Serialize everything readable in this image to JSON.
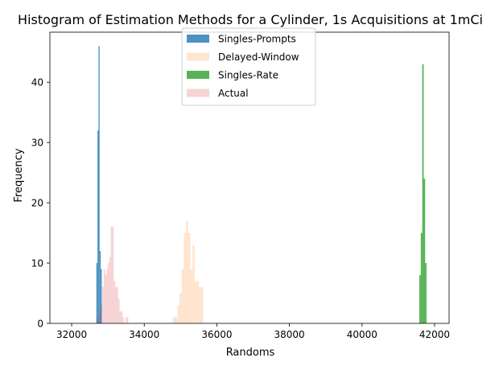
{
  "chart_data": {
    "type": "bar",
    "title": "Histogram of Estimation Methods for a Cylinder, 1s Acquisitions at 1mCi",
    "xlabel": "Randoms",
    "ylabel": "Frequency",
    "xlim": [
      31400,
      42400
    ],
    "ylim": [
      0,
      48.3
    ],
    "xticks": [
      32000,
      34000,
      36000,
      38000,
      40000,
      42000
    ],
    "xtick_labels": [
      "32000",
      "34000",
      "36000",
      "38000",
      "40000",
      "42000"
    ],
    "yticks": [
      0,
      10,
      20,
      30,
      40
    ],
    "ytick_labels": [
      "0",
      "10",
      "20",
      "30",
      "40"
    ],
    "grid": false,
    "legend_position": "top-center",
    "series": [
      {
        "name": "Singles-Prompts",
        "color": "#1f77b4",
        "alpha": 0.8,
        "bins": [
          {
            "x0": 32680,
            "x1": 32710,
            "count": 10
          },
          {
            "x0": 32710,
            "x1": 32740,
            "count": 32
          },
          {
            "x0": 32740,
            "x1": 32770,
            "count": 46
          },
          {
            "x0": 32770,
            "x1": 32800,
            "count": 12
          },
          {
            "x0": 32800,
            "x1": 32830,
            "count": 9
          }
        ]
      },
      {
        "name": "Delayed-Window",
        "color": "#ff7f0e",
        "alpha": 0.2,
        "bins": [
          {
            "x0": 34790,
            "x1": 34850,
            "count": 1
          },
          {
            "x0": 34850,
            "x1": 34910,
            "count": 1
          },
          {
            "x0": 34910,
            "x1": 34970,
            "count": 3
          },
          {
            "x0": 34970,
            "x1": 35030,
            "count": 5
          },
          {
            "x0": 35030,
            "x1": 35090,
            "count": 9
          },
          {
            "x0": 35090,
            "x1": 35150,
            "count": 15
          },
          {
            "x0": 35150,
            "x1": 35210,
            "count": 17
          },
          {
            "x0": 35210,
            "x1": 35270,
            "count": 15
          },
          {
            "x0": 35270,
            "x1": 35330,
            "count": 9
          },
          {
            "x0": 35330,
            "x1": 35390,
            "count": 13
          },
          {
            "x0": 35390,
            "x1": 35450,
            "count": 7
          },
          {
            "x0": 35450,
            "x1": 35510,
            "count": 7
          },
          {
            "x0": 35510,
            "x1": 35570,
            "count": 6
          },
          {
            "x0": 35570,
            "x1": 35630,
            "count": 6
          }
        ]
      },
      {
        "name": "Singles-Rate",
        "color": "#2ca02c",
        "alpha": 0.8,
        "bins": [
          {
            "x0": 41580,
            "x1": 41620,
            "count": 8
          },
          {
            "x0": 41620,
            "x1": 41660,
            "count": 15
          },
          {
            "x0": 41660,
            "x1": 41700,
            "count": 43
          },
          {
            "x0": 41700,
            "x1": 41740,
            "count": 24
          },
          {
            "x0": 41740,
            "x1": 41780,
            "count": 10
          }
        ]
      },
      {
        "name": "Actual",
        "color": "#d62728",
        "alpha": 0.2,
        "bins": [
          {
            "x0": 32680,
            "x1": 32720,
            "count": 1
          },
          {
            "x0": 32720,
            "x1": 32760,
            "count": 0
          },
          {
            "x0": 32760,
            "x1": 32800,
            "count": 2
          },
          {
            "x0": 32800,
            "x1": 32840,
            "count": 3
          },
          {
            "x0": 32840,
            "x1": 32880,
            "count": 6
          },
          {
            "x0": 32880,
            "x1": 32920,
            "count": 9
          },
          {
            "x0": 32920,
            "x1": 32960,
            "count": 8
          },
          {
            "x0": 32960,
            "x1": 33000,
            "count": 9
          },
          {
            "x0": 33000,
            "x1": 33040,
            "count": 10
          },
          {
            "x0": 33040,
            "x1": 33080,
            "count": 11
          },
          {
            "x0": 33080,
            "x1": 33120,
            "count": 16
          },
          {
            "x0": 33120,
            "x1": 33160,
            "count": 16
          },
          {
            "x0": 33160,
            "x1": 33200,
            "count": 7
          },
          {
            "x0": 33200,
            "x1": 33240,
            "count": 6
          },
          {
            "x0": 33240,
            "x1": 33280,
            "count": 6
          },
          {
            "x0": 33280,
            "x1": 33320,
            "count": 4
          },
          {
            "x0": 33320,
            "x1": 33360,
            "count": 2
          },
          {
            "x0": 33360,
            "x1": 33400,
            "count": 2
          },
          {
            "x0": 33400,
            "x1": 33440,
            "count": 1
          },
          {
            "x0": 33440,
            "x1": 33480,
            "count": 0
          },
          {
            "x0": 33480,
            "x1": 33520,
            "count": 1
          },
          {
            "x0": 33520,
            "x1": 33560,
            "count": 1
          }
        ]
      }
    ]
  }
}
